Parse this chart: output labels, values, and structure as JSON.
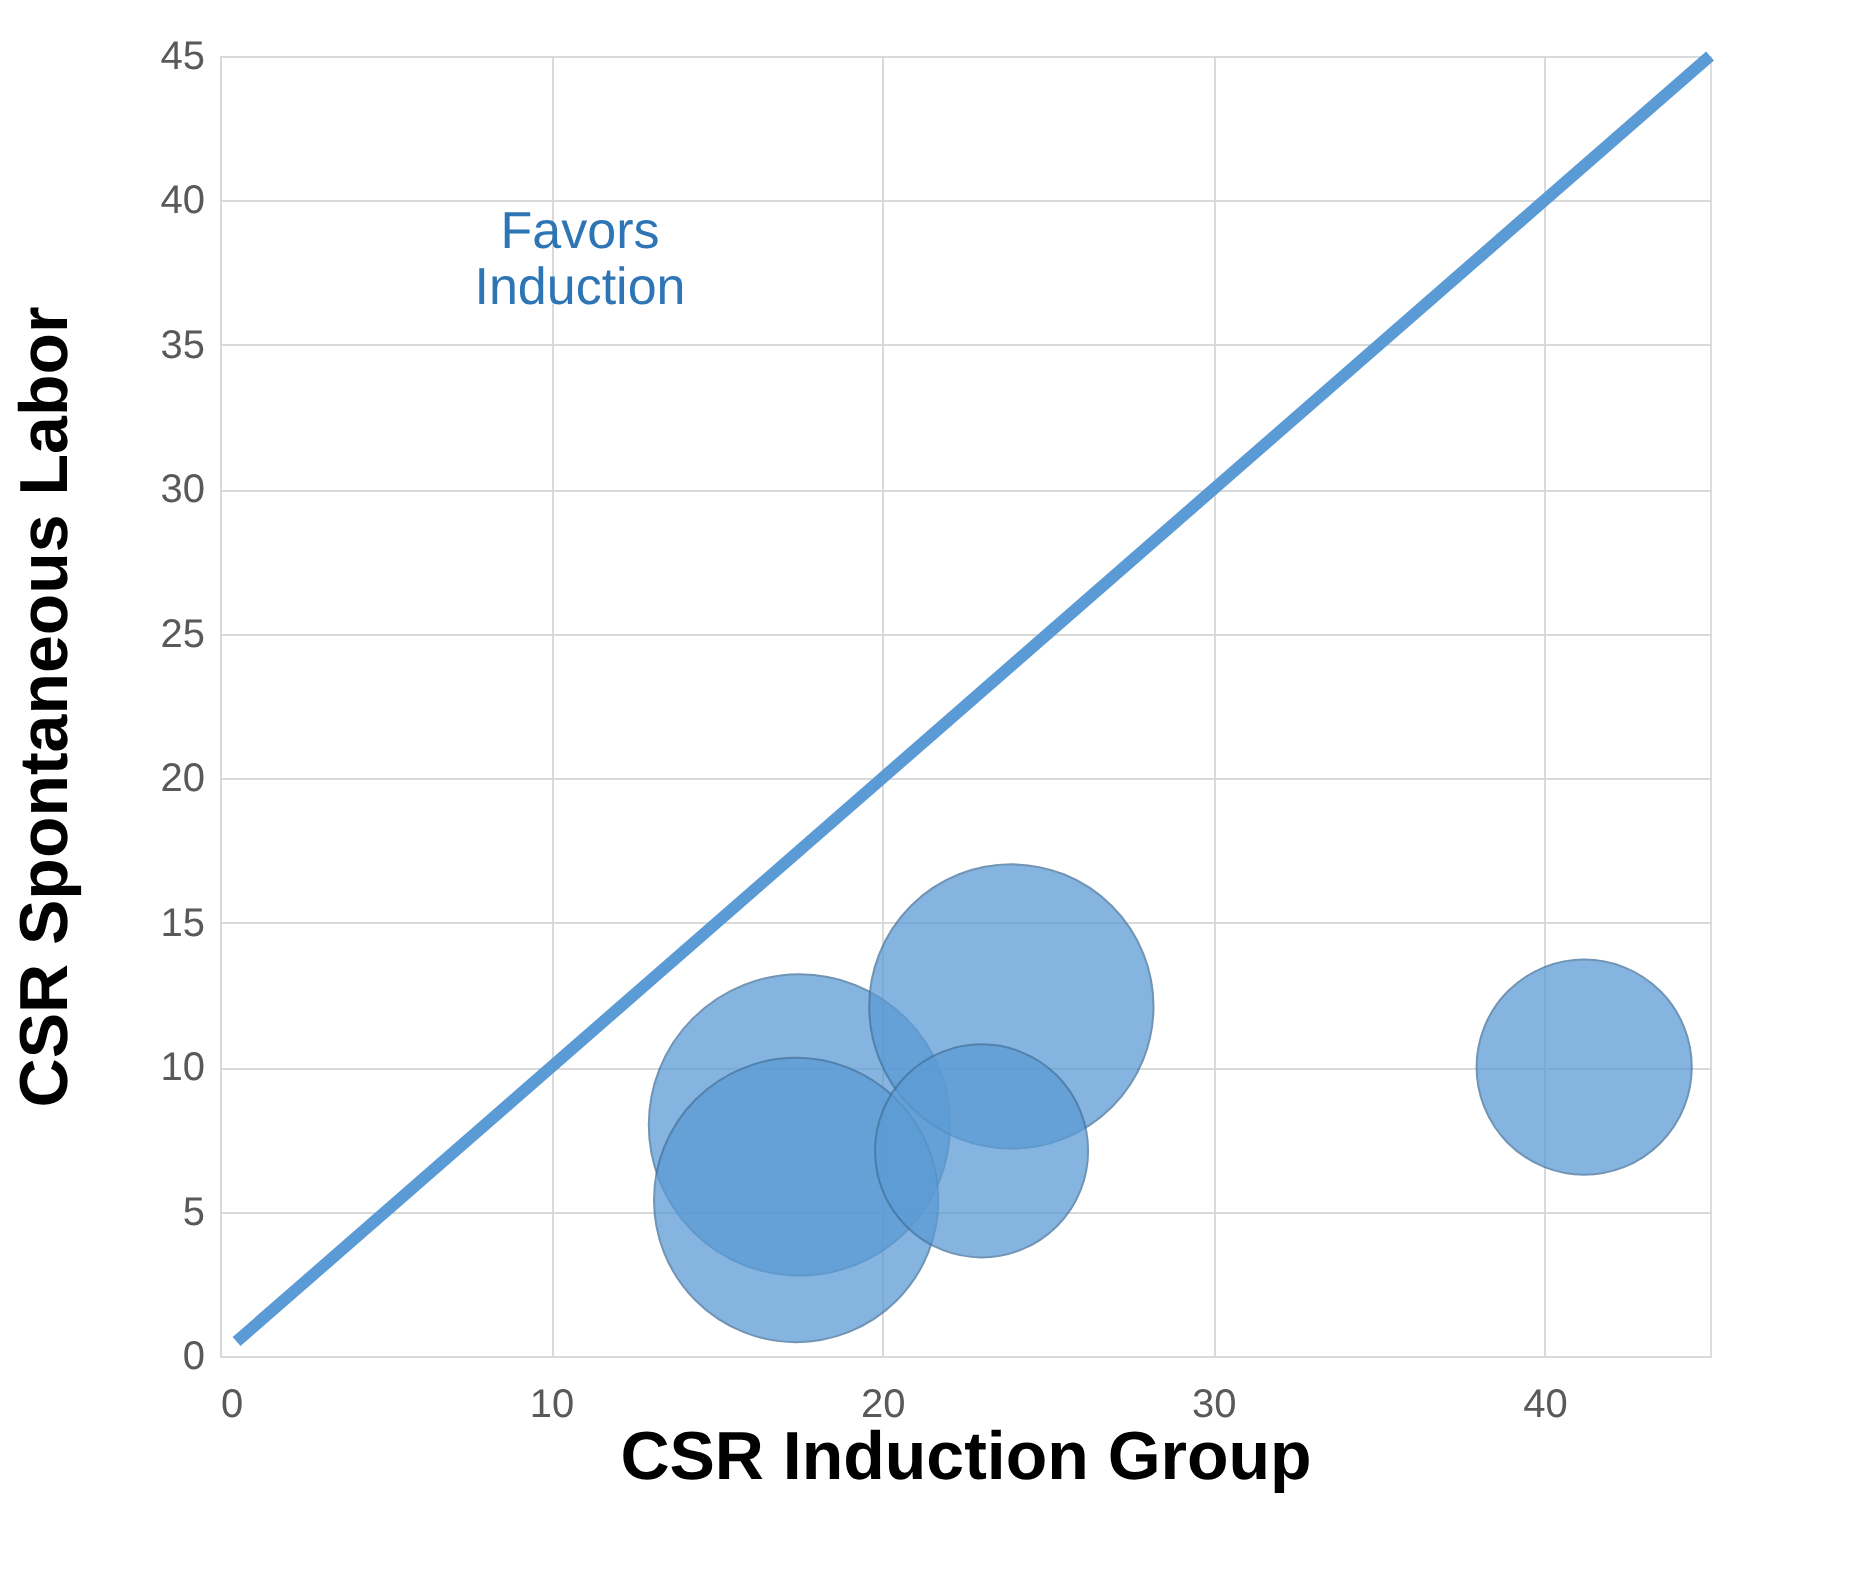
{
  "chart_data": {
    "type": "bubble",
    "xlabel": "CSR Induction Group",
    "ylabel": "CSR Spontaneous Labor",
    "annotations": [
      "Favors\nInduction"
    ],
    "xlim": [
      0,
      45
    ],
    "xticks": [
      0,
      10,
      20,
      30,
      40
    ],
    "ylim": [
      0,
      45
    ],
    "yticks": [
      0,
      5,
      10,
      15,
      20,
      25,
      30,
      35,
      40,
      45
    ],
    "grid": true,
    "series": [
      {
        "color": "#5b9bd5",
        "marker": "circle",
        "x": [
          17.5,
          17.4,
          23.9,
          23.0,
          41.2
        ],
        "values": [
          8.0,
          5.4,
          12.1,
          7.1,
          10.0
        ],
        "sizes": [
          1,
          0.89,
          0.89,
          0.5,
          0.51
        ]
      },
      {
        "type": "line",
        "color": "#5b9bd5",
        "marker": "none",
        "x": [
          0.5,
          45
        ],
        "values": [
          0.5,
          45
        ]
      }
    ]
  }
}
